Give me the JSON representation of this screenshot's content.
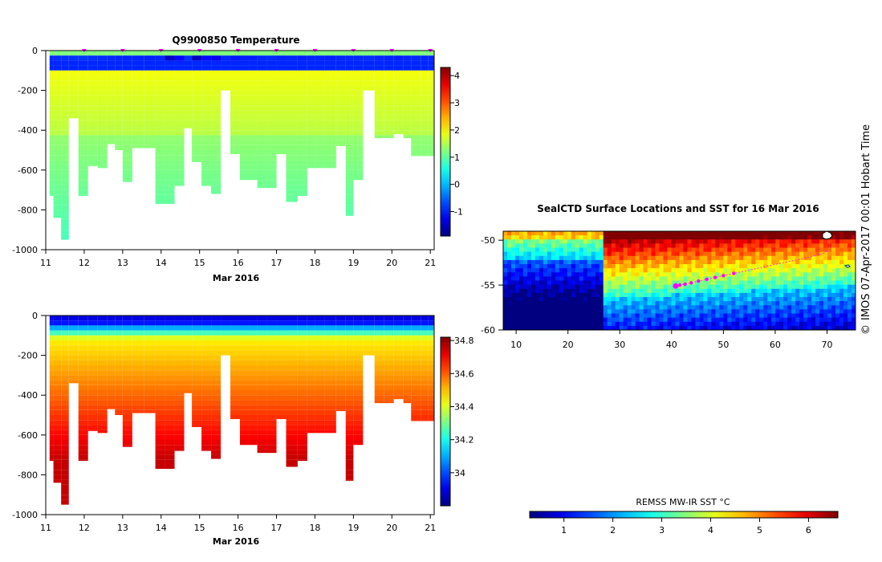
{
  "chart_data": [
    {
      "type": "heatmap",
      "title": "Q9900850  Temperature",
      "xlabel": "Mar 2016",
      "ylabel": "",
      "x_ticks": [
        "11",
        "12",
        "13",
        "14",
        "15",
        "16",
        "17",
        "18",
        "19",
        "20",
        "21"
      ],
      "y_ticks": [
        "0",
        "-200",
        "-400",
        "-600",
        "-800",
        "-1000"
      ],
      "xlim": [
        11,
        21.1
      ],
      "ylim": [
        -1000,
        0
      ],
      "colorbar": {
        "ticks": [
          "-1",
          "0",
          "1",
          "2",
          "3",
          "4"
        ],
        "range": [
          -1.9,
          4.3
        ]
      },
      "profile_days": [
        11.1,
        11.3,
        11.5,
        11.7,
        12.0,
        12.2,
        12.5,
        12.7,
        12.9,
        13.1,
        13.4,
        13.7,
        14.0,
        14.2,
        14.5,
        14.7,
        14.9,
        15.2,
        15.4,
        15.7,
        15.9,
        16.2,
        16.4,
        16.6,
        16.9,
        17.1,
        17.4,
        17.7,
        17.9,
        18.1,
        18.4,
        18.7,
        18.9,
        19.1,
        19.4,
        19.7,
        19.9,
        20.2,
        20.4,
        20.6,
        20.9,
        21.0
      ],
      "profile_max_depth": [
        -730,
        -840,
        -950,
        -340,
        -730,
        -580,
        -590,
        -470,
        -500,
        -660,
        -490,
        -490,
        -770,
        -770,
        -680,
        -390,
        -560,
        -680,
        -720,
        -200,
        -520,
        -650,
        -650,
        -690,
        -690,
        -520,
        -760,
        -730,
        -590,
        -590,
        -590,
        -480,
        -830,
        -650,
        -200,
        -440,
        -440,
        -420,
        -440,
        -530,
        -530,
        -530
      ],
      "mixed_layer_temperature": [
        1.6,
        1.7,
        1.8,
        1.9,
        2.0,
        1.8,
        1.7,
        1.6,
        1.5,
        1.4,
        1.4,
        1.4,
        1.5,
        -1.5,
        0.5,
        1.8,
        -1.6,
        0.6,
        -0.2,
        1.5,
        1.0,
        1.3,
        1.2,
        1.5,
        1.6,
        1.4,
        1.5,
        1.3,
        1.4,
        1.4,
        1.3,
        1.5,
        1.6,
        1.6,
        1.7,
        1.5,
        1.4,
        1.3,
        1.5,
        1.6,
        1.5,
        1.5
      ],
      "surface_marker_days": [
        12,
        13,
        14,
        15,
        16,
        17,
        18,
        19,
        20,
        21
      ]
    },
    {
      "type": "heatmap",
      "title": "",
      "xlabel": "Mar 2016",
      "ylabel": "",
      "x_ticks": [
        "11",
        "12",
        "13",
        "14",
        "15",
        "16",
        "17",
        "18",
        "19",
        "20",
        "21"
      ],
      "y_ticks": [
        "0",
        "-200",
        "-400",
        "-600",
        "-800",
        "-1000"
      ],
      "xlim": [
        11,
        21.1
      ],
      "ylim": [
        -1000,
        0
      ],
      "colorbar": {
        "ticks": [
          "34",
          "34.2",
          "34.4",
          "34.6",
          "34.8"
        ],
        "range": [
          33.8,
          34.82
        ]
      }
    },
    {
      "type": "heatmap",
      "title": "SealCTD Surface Locations and SST for 16 Mar 2016",
      "xlabel": "",
      "ylabel": "",
      "x_ticks": [
        "10",
        "20",
        "30",
        "40",
        "50",
        "60",
        "70"
      ],
      "y_ticks": [
        "-50",
        "-55",
        "-60"
      ],
      "xlim": [
        7.5,
        75.5
      ],
      "ylim": [
        -60,
        -49
      ],
      "track_lon": [
        40.8,
        41.6,
        42.6,
        43.8,
        45.2,
        46.8,
        48.4,
        50.0,
        52.0,
        54.0,
        56.0,
        58.0,
        60.0,
        62.0,
        64.0,
        66.0,
        68.0,
        69.6,
        70.6,
        70.4,
        69.8
      ],
      "track_lat": [
        -55.1,
        -55.0,
        -54.9,
        -54.75,
        -54.55,
        -54.35,
        -54.15,
        -53.95,
        -53.7,
        -53.45,
        -53.2,
        -52.95,
        -52.7,
        -52.45,
        -52.2,
        -51.95,
        -51.7,
        -51.4,
        -51.0,
        -50.3,
        -49.8
      ],
      "colorbar": {
        "label": "REMSS MW-IR SST °C",
        "ticks": [
          "1",
          "2",
          "3",
          "4",
          "5",
          "6"
        ],
        "range": [
          0.3,
          6.6
        ]
      }
    }
  ],
  "side_text": "IMOS 07-Apr-2017 00:01 Hobart Time",
  "copyright_symbol": "©"
}
